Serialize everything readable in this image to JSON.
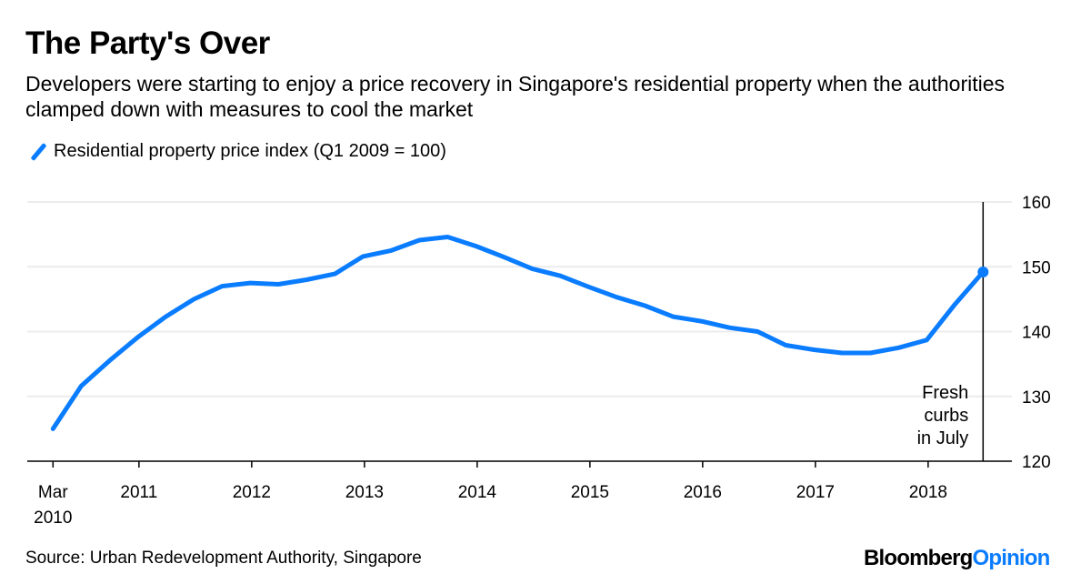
{
  "chart_data": {
    "type": "line",
    "title": "The Party's Over",
    "subtitle": "Developers were starting to enjoy a price recovery in Singapore's residential property when the authorities clamped down with measures to cool the market",
    "x": [
      "Q1 2010",
      "Q2 2010",
      "Q3 2010",
      "Q4 2010",
      "Q1 2011",
      "Q2 2011",
      "Q3 2011",
      "Q4 2011",
      "Q1 2012",
      "Q2 2012",
      "Q3 2012",
      "Q4 2012",
      "Q1 2013",
      "Q2 2013",
      "Q3 2013",
      "Q4 2013",
      "Q1 2014",
      "Q2 2014",
      "Q3 2014",
      "Q4 2014",
      "Q1 2015",
      "Q2 2015",
      "Q3 2015",
      "Q4 2015",
      "Q1 2016",
      "Q2 2016",
      "Q3 2016",
      "Q4 2016",
      "Q1 2017",
      "Q2 2017",
      "Q3 2017",
      "Q4 2017",
      "Q1 2018",
      "Q2 2018"
    ],
    "series": [
      {
        "name": "Residential property price index (Q1 2009 = 100)",
        "color": "#0a7cff",
        "values": [
          125.0,
          131.6,
          135.5,
          139.1,
          142.3,
          145.0,
          147.0,
          147.5,
          147.3,
          148.0,
          148.9,
          151.6,
          152.5,
          154.1,
          154.6,
          153.2,
          151.5,
          149.7,
          148.6,
          146.9,
          145.3,
          144.0,
          142.3,
          141.6,
          140.6,
          140.0,
          137.9,
          137.2,
          136.7,
          136.7,
          137.5,
          138.7,
          144.2,
          149.2
        ]
      }
    ],
    "x_tick_labels": [
      "Mar\n2010",
      "2011",
      "2012",
      "2013",
      "2014",
      "2015",
      "2016",
      "2017",
      "2018"
    ],
    "x_tick_label_lines": [
      [
        "Mar",
        "2010"
      ],
      [
        "2011"
      ],
      [
        "2012"
      ],
      [
        "2013"
      ],
      [
        "2014"
      ],
      [
        "2015"
      ],
      [
        "2016"
      ],
      [
        "2017"
      ],
      [
        "2018"
      ]
    ],
    "y_ticks": [
      120,
      130,
      140,
      150,
      160
    ],
    "ylim": [
      120,
      160
    ],
    "y_axis_side": "right",
    "grid": true,
    "legend_position": "top-left",
    "annotation": {
      "lines": [
        "Fresh",
        "curbs",
        "in July"
      ],
      "at": "Q2 2018"
    }
  },
  "footer": {
    "source": "Source: Urban Redevelopment Authority, Singapore",
    "logo_main": "Bloomberg",
    "logo_accent": "Opinion"
  }
}
